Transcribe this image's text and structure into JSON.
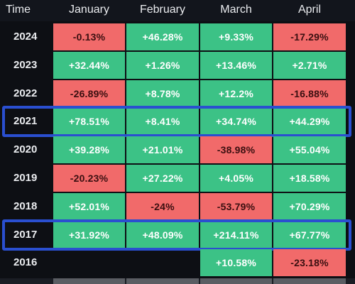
{
  "header": {
    "time": "Time",
    "months": [
      "January",
      "February",
      "March",
      "April"
    ]
  },
  "rows": [
    {
      "year": "2024",
      "cells": [
        {
          "value": "-0.13%",
          "sign": "neg"
        },
        {
          "value": "+46.28%",
          "sign": "pos"
        },
        {
          "value": "+9.33%",
          "sign": "pos"
        },
        {
          "value": "-17.29%",
          "sign": "neg"
        }
      ]
    },
    {
      "year": "2023",
      "cells": [
        {
          "value": "+32.44%",
          "sign": "pos"
        },
        {
          "value": "+1.26%",
          "sign": "pos"
        },
        {
          "value": "+13.46%",
          "sign": "pos"
        },
        {
          "value": "+2.71%",
          "sign": "pos"
        }
      ]
    },
    {
      "year": "2022",
      "cells": [
        {
          "value": "-26.89%",
          "sign": "neg"
        },
        {
          "value": "+8.78%",
          "sign": "pos"
        },
        {
          "value": "+12.2%",
          "sign": "pos"
        },
        {
          "value": "-16.88%",
          "sign": "neg"
        }
      ]
    },
    {
      "year": "2021",
      "cells": [
        {
          "value": "+78.51%",
          "sign": "pos"
        },
        {
          "value": "+8.41%",
          "sign": "pos"
        },
        {
          "value": "+34.74%",
          "sign": "pos"
        },
        {
          "value": "+44.29%",
          "sign": "pos"
        }
      ]
    },
    {
      "year": "2020",
      "cells": [
        {
          "value": "+39.28%",
          "sign": "pos"
        },
        {
          "value": "+21.01%",
          "sign": "pos"
        },
        {
          "value": "-38.98%",
          "sign": "neg"
        },
        {
          "value": "+55.04%",
          "sign": "pos"
        }
      ]
    },
    {
      "year": "2019",
      "cells": [
        {
          "value": "-20.23%",
          "sign": "neg"
        },
        {
          "value": "+27.22%",
          "sign": "pos"
        },
        {
          "value": "+4.05%",
          "sign": "pos"
        },
        {
          "value": "+18.58%",
          "sign": "pos"
        }
      ]
    },
    {
      "year": "2018",
      "cells": [
        {
          "value": "+52.01%",
          "sign": "pos"
        },
        {
          "value": "-24%",
          "sign": "neg"
        },
        {
          "value": "-53.79%",
          "sign": "neg"
        },
        {
          "value": "+70.29%",
          "sign": "pos"
        }
      ]
    },
    {
      "year": "2017",
      "cells": [
        {
          "value": "+31.92%",
          "sign": "pos"
        },
        {
          "value": "+48.09%",
          "sign": "pos"
        },
        {
          "value": "+214.11%",
          "sign": "pos"
        },
        {
          "value": "+67.77%",
          "sign": "pos"
        }
      ]
    },
    {
      "year": "2016",
      "cells": [
        {
          "value": "",
          "sign": "empty"
        },
        {
          "value": "",
          "sign": "empty"
        },
        {
          "value": "+10.58%",
          "sign": "pos"
        },
        {
          "value": "-23.18%",
          "sign": "neg"
        }
      ]
    }
  ],
  "highlighted_years": [
    "2021",
    "2017"
  ],
  "colors": {
    "positive": "#3cc286",
    "negative": "#f16a6a",
    "highlight_border": "#2a4fd0",
    "background": "#0d0f14"
  }
}
